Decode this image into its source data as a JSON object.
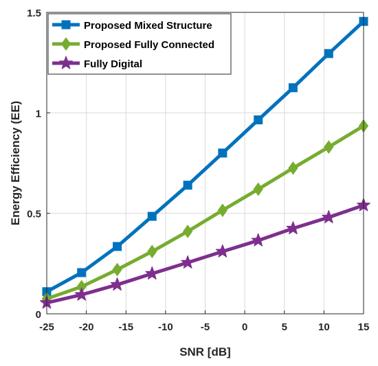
{
  "chart_data": {
    "type": "line",
    "xlabel": "SNR [dB]",
    "ylabel": "Energy Efficiency (EE)",
    "xlim": [
      -25,
      15
    ],
    "ylim": [
      0,
      1.5
    ],
    "xticks": [
      -25,
      -20,
      -15,
      -10,
      -5,
      0,
      5,
      10,
      15
    ],
    "yticks": [
      0,
      0.5,
      1,
      1.5
    ],
    "ytick_labels": [
      "0",
      "0.5",
      "1",
      "1.5"
    ],
    "grid": true,
    "legend_position": "top-left",
    "x": [
      -25,
      -20.6,
      -16.1,
      -11.7,
      -7.2,
      -2.8,
      1.7,
      6.1,
      10.6,
      15
    ],
    "series": [
      {
        "name": "Proposed Mixed Structure",
        "marker": "square",
        "color": "#0072BD",
        "values": [
          0.11,
          0.205,
          0.335,
          0.485,
          0.64,
          0.8,
          0.965,
          1.125,
          1.295,
          1.455
        ]
      },
      {
        "name": "Proposed Fully Connected",
        "marker": "diamond",
        "color": "#77AC30",
        "values": [
          0.075,
          0.135,
          0.22,
          0.31,
          0.41,
          0.515,
          0.62,
          0.725,
          0.83,
          0.935
        ]
      },
      {
        "name": "Fully Digital",
        "marker": "star",
        "color": "#7E2F8E",
        "values": [
          0.055,
          0.095,
          0.145,
          0.2,
          0.255,
          0.31,
          0.365,
          0.425,
          0.48,
          0.54
        ]
      }
    ]
  }
}
